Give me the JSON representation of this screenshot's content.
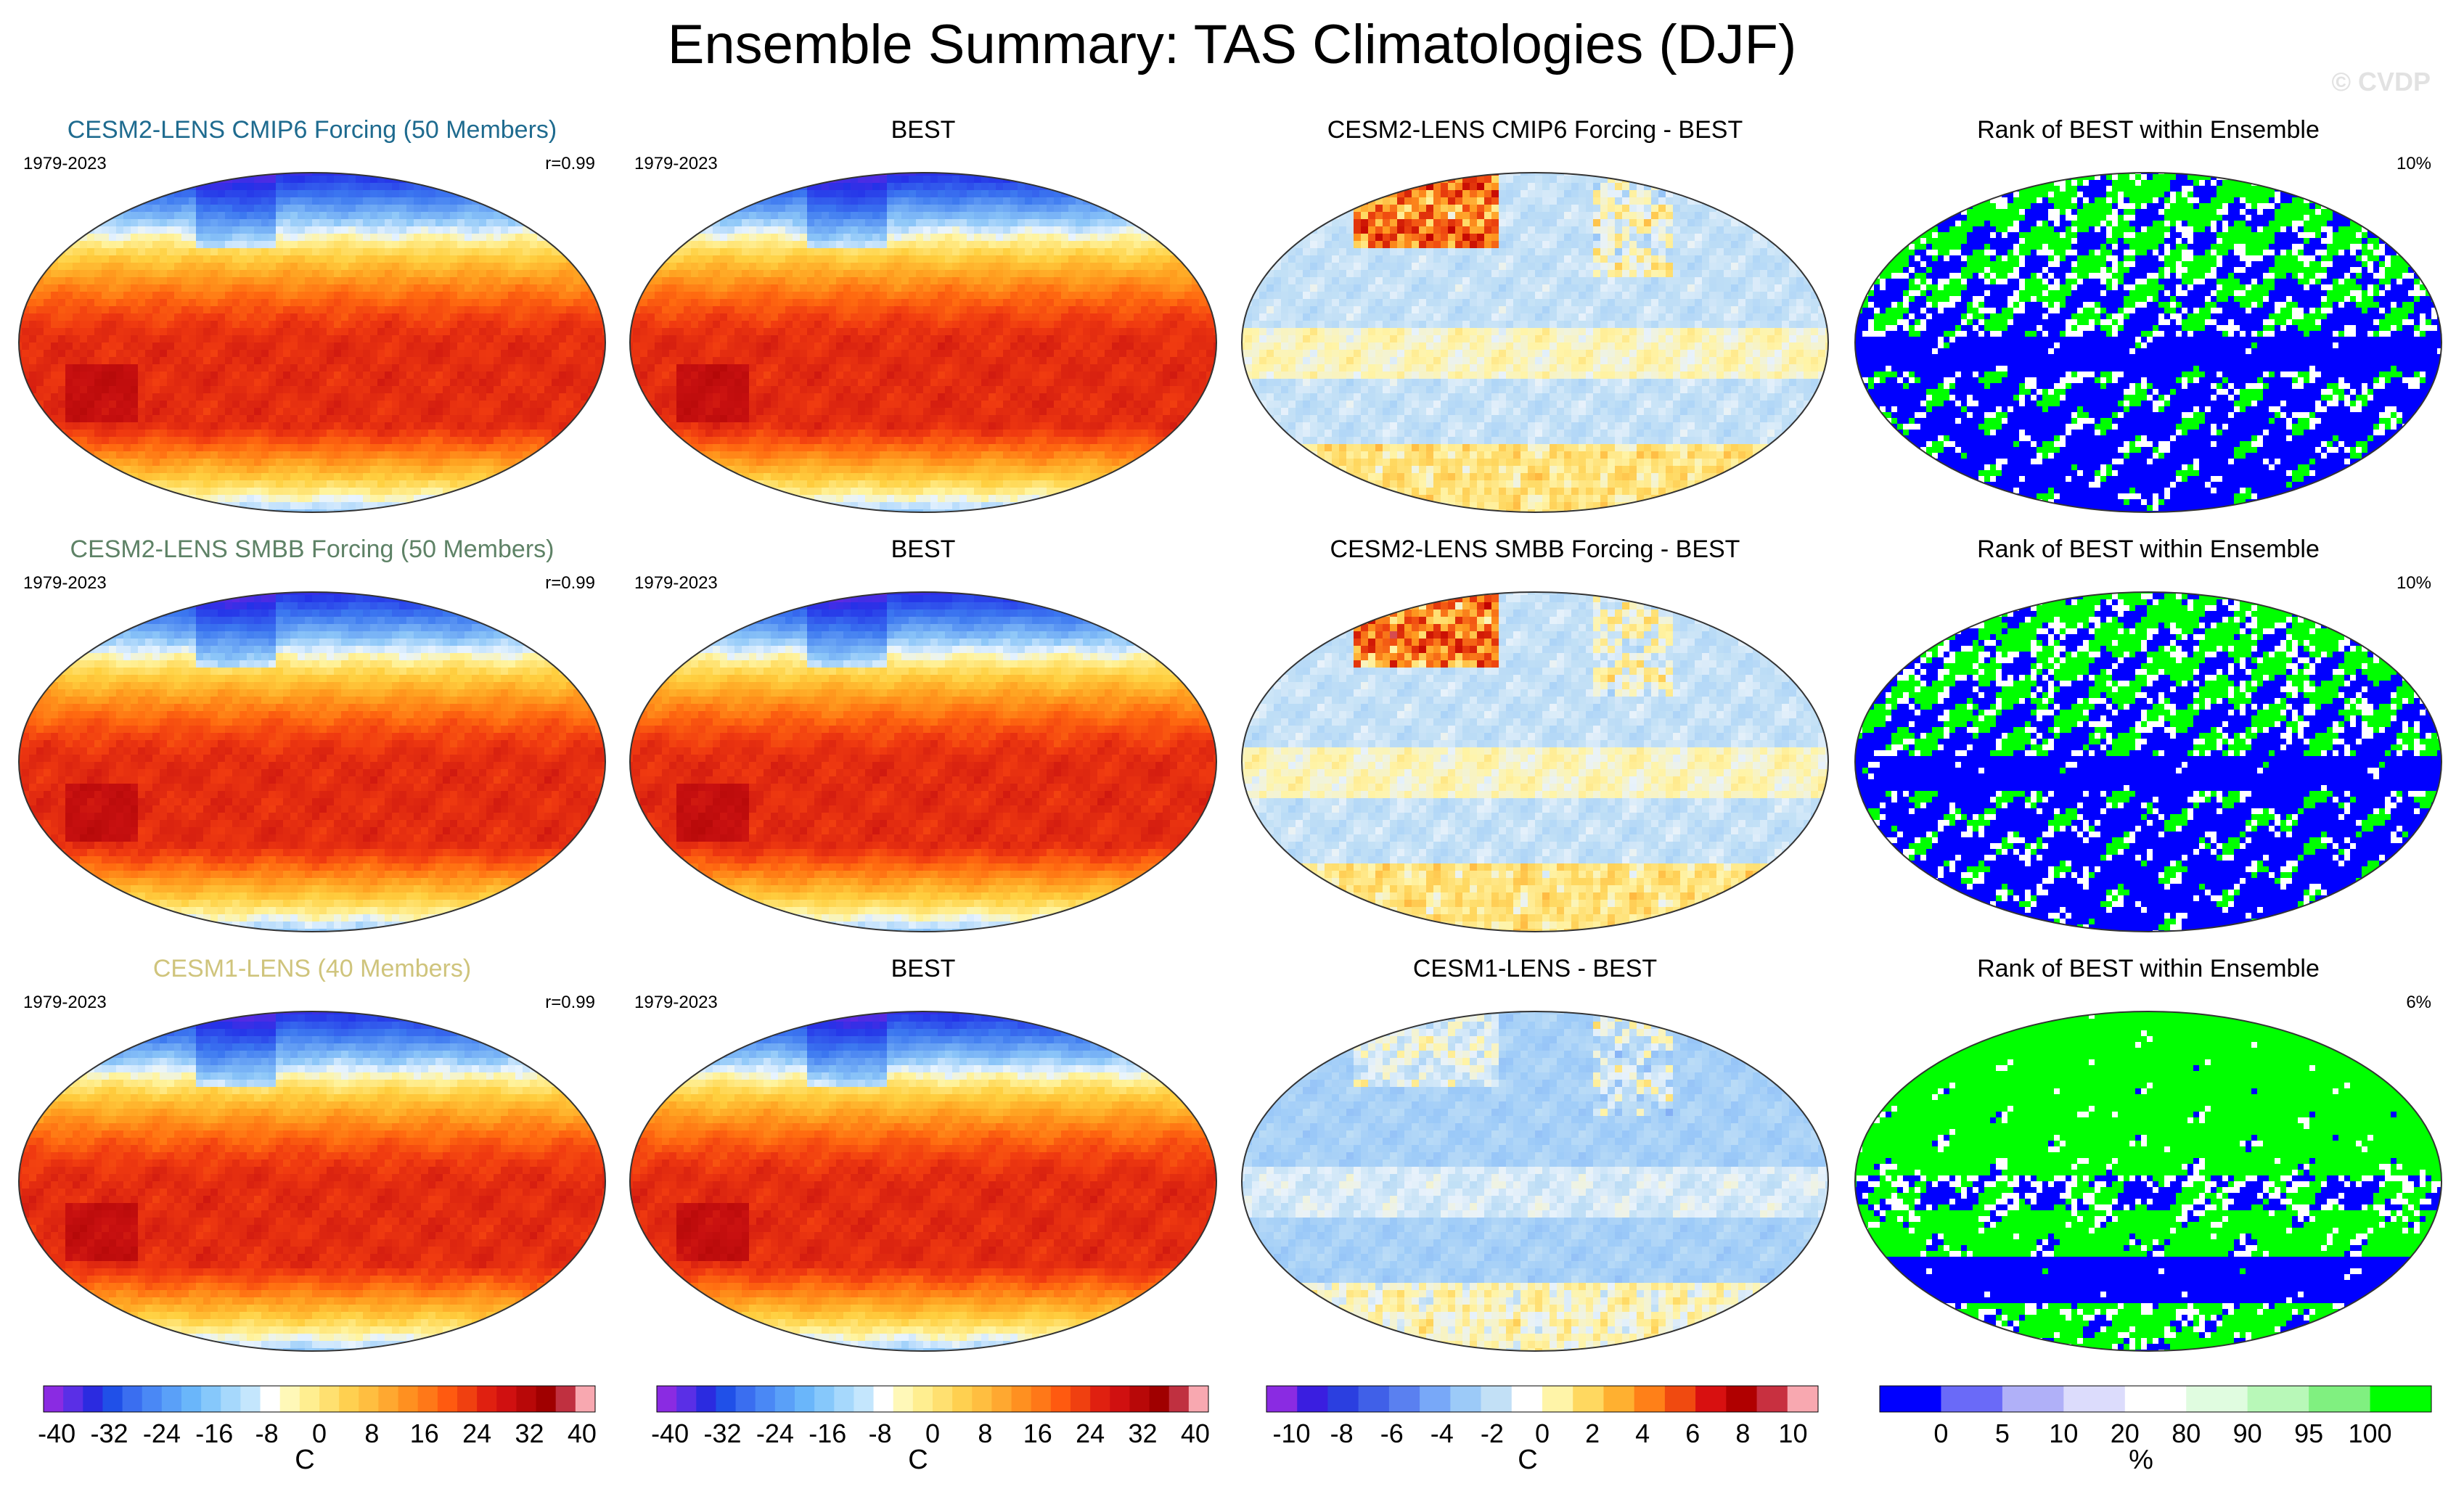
{
  "figure": {
    "title": "Ensemble Summary: TAS Climatologies (DJF)",
    "watermark": "© CVDP"
  },
  "chart_data": [
    {
      "type": "heatmap",
      "title": "CESM2-LENS CMIP6 Forcing (50 Members)",
      "title_color": "#1f6b8f",
      "period": "1979-2023",
      "stat": "r=0.99",
      "field": "climatology"
    },
    {
      "type": "heatmap",
      "title": "BEST",
      "title_color": "#000000",
      "period": "1979-2023",
      "stat": "",
      "field": "climatology"
    },
    {
      "type": "heatmap",
      "title": "CESM2-LENS CMIP6 Forcing - BEST",
      "title_color": "#000000",
      "period": "",
      "stat": "",
      "field": "difference1"
    },
    {
      "type": "heatmap",
      "title": "Rank of BEST within Ensemble",
      "title_color": "#000000",
      "period": "",
      "stat": "10%",
      "field": "rank1"
    },
    {
      "type": "heatmap",
      "title": "CESM2-LENS SMBB Forcing (50 Members)",
      "title_color": "#5e8266",
      "period": "1979-2023",
      "stat": "r=0.99",
      "field": "climatology"
    },
    {
      "type": "heatmap",
      "title": "BEST",
      "title_color": "#000000",
      "period": "1979-2023",
      "stat": "",
      "field": "climatology"
    },
    {
      "type": "heatmap",
      "title": "CESM2-LENS SMBB Forcing - BEST",
      "title_color": "#000000",
      "period": "",
      "stat": "",
      "field": "difference2"
    },
    {
      "type": "heatmap",
      "title": "Rank of BEST within Ensemble",
      "title_color": "#000000",
      "period": "",
      "stat": "10%",
      "field": "rank2"
    },
    {
      "type": "heatmap",
      "title": "CESM1-LENS (40 Members)",
      "title_color": "#cfc47c",
      "period": "1979-2023",
      "stat": "r=0.99",
      "field": "climatology"
    },
    {
      "type": "heatmap",
      "title": "BEST",
      "title_color": "#000000",
      "period": "1979-2023",
      "stat": "",
      "field": "climatology"
    },
    {
      "type": "heatmap",
      "title": "CESM1-LENS - BEST",
      "title_color": "#000000",
      "period": "",
      "stat": "",
      "field": "difference3"
    },
    {
      "type": "heatmap",
      "title": "Rank of BEST within Ensemble",
      "title_color": "#000000",
      "period": "",
      "stat": "6%",
      "field": "rank3"
    }
  ],
  "colorbars": [
    {
      "name": "temperature-colorbar",
      "colors": [
        "#8a2be2",
        "#5a2fe6",
        "#2b2be0",
        "#2050e8",
        "#3a6ef0",
        "#4a88f5",
        "#5aa0f8",
        "#6ab6fa",
        "#86c8fb",
        "#a6d8fc",
        "#c4e6fd",
        "#ffffff",
        "#fff8b8",
        "#ffee90",
        "#ffe070",
        "#ffd050",
        "#ffbe40",
        "#ffa830",
        "#ff9020",
        "#ff7818",
        "#ff5a10",
        "#f04010",
        "#e02010",
        "#d01010",
        "#b80808",
        "#a00000",
        "#c03040",
        "#f8a8b0"
      ],
      "tick_values": [
        -40,
        -32,
        -24,
        -16,
        -8,
        0,
        8,
        16,
        24,
        32,
        40
      ],
      "tick_labels": [
        "-40",
        "-32",
        "-24",
        "-16",
        "-8",
        "0",
        "8",
        "16",
        "24",
        "32",
        "40"
      ],
      "range": [
        -42,
        42
      ],
      "unit": "C"
    },
    {
      "name": "temperature-colorbar",
      "colors": [
        "#8a2be2",
        "#5a2fe6",
        "#2b2be0",
        "#2050e8",
        "#3a6ef0",
        "#4a88f5",
        "#5aa0f8",
        "#6ab6fa",
        "#86c8fb",
        "#a6d8fc",
        "#c4e6fd",
        "#ffffff",
        "#fff8b8",
        "#ffee90",
        "#ffe070",
        "#ffd050",
        "#ffbe40",
        "#ffa830",
        "#ff9020",
        "#ff7818",
        "#ff5a10",
        "#f04010",
        "#e02010",
        "#d01010",
        "#b80808",
        "#a00000",
        "#c03040",
        "#f8a8b0"
      ],
      "tick_values": [
        -40,
        -32,
        -24,
        -16,
        -8,
        0,
        8,
        16,
        24,
        32,
        40
      ],
      "tick_labels": [
        "-40",
        "-32",
        "-24",
        "-16",
        "-8",
        "0",
        "8",
        "16",
        "24",
        "32",
        "40"
      ],
      "range": [
        -42,
        42
      ],
      "unit": "C"
    },
    {
      "name": "difference-colorbar",
      "colors": [
        "#8a2be2",
        "#3a1ee0",
        "#2b3fe0",
        "#4060e8",
        "#5a80f0",
        "#78a8f8",
        "#9ccaf8",
        "#c2e0f6",
        "#ffffff",
        "#fff4a8",
        "#ffd860",
        "#ffb030",
        "#ff8018",
        "#f04a10",
        "#d81010",
        "#b00000",
        "#c83040",
        "#f8a8b0"
      ],
      "tick_values": [
        -10,
        -8,
        -6,
        -4,
        -2,
        0,
        2,
        4,
        6,
        8,
        10
      ],
      "tick_labels": [
        "-10",
        "-8",
        "-6",
        "-4",
        "-2",
        "0",
        "2",
        "4",
        "6",
        "8",
        "10"
      ],
      "range": [
        -11,
        11
      ],
      "unit": "C"
    },
    {
      "name": "rank-colorbar",
      "colors": [
        "#0000ff",
        "#6a6af8",
        "#b0b0f8",
        "#dcdcfc",
        "#ffffff",
        "#e0fce0",
        "#b8f8b8",
        "#80f080",
        "#00ff00"
      ],
      "bounds": [
        -5,
        0,
        5,
        10,
        20,
        80,
        90,
        95,
        100,
        105
      ],
      "tick_values": [
        0,
        5,
        10,
        20,
        80,
        90,
        95,
        100
      ],
      "tick_labels": [
        "0",
        "5",
        "10",
        "20",
        "80",
        "90",
        "95",
        "100"
      ],
      "unit": "%"
    }
  ]
}
